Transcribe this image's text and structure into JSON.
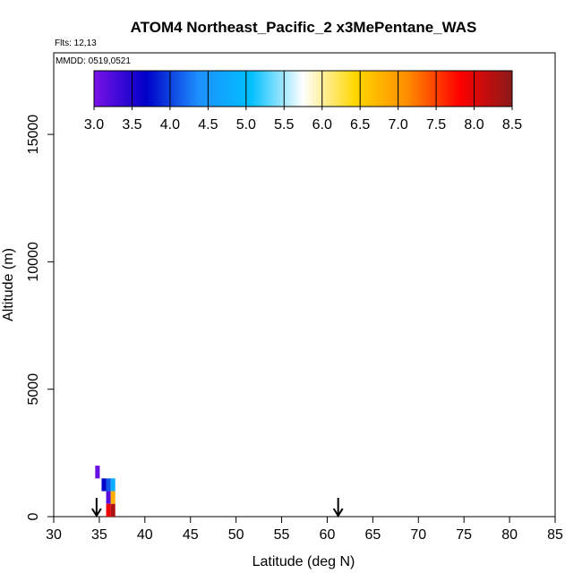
{
  "chart_data": {
    "type": "heatmap",
    "title": "ATOM4 Northeast_Pacific_2 x3MePentane_WAS",
    "flights_label": "Flts: 12,13",
    "date_label": "MMDD: 0519,0521",
    "xlabel": "Latitude (deg N)",
    "ylabel": "Altitude (m)",
    "xlim": [
      30,
      85
    ],
    "ylim": [
      0,
      18200
    ],
    "x_ticks": [
      30,
      35,
      40,
      45,
      50,
      55,
      60,
      65,
      70,
      75,
      80,
      85
    ],
    "y_ticks": [
      0,
      5000,
      10000,
      15000
    ],
    "grid": false,
    "colorbar": {
      "placement": "top",
      "min": 3.0,
      "max": 8.5,
      "tick_labels": [
        "3.0",
        "3.5",
        "4.0",
        "4.5",
        "5.0",
        "5.5",
        "6.0",
        "6.5",
        "7.0",
        "7.5",
        "8.0",
        "8.5"
      ],
      "colors": [
        "#7a12e6",
        "#0000c8",
        "#1e90ff",
        "#00bfff",
        "#ffffff",
        "#ffd700",
        "#ff8c00",
        "#ff0000",
        "#8b1a1a"
      ]
    },
    "cells": [
      {
        "lat": 34.8,
        "alt": 1750,
        "value": 3.1
      },
      {
        "lat": 35.5,
        "alt": 1250,
        "value": 3.7
      },
      {
        "lat": 36.0,
        "alt": 1250,
        "value": 4.1
      },
      {
        "lat": 36.5,
        "alt": 1250,
        "value": 4.8
      },
      {
        "lat": 36.0,
        "alt": 750,
        "value": 3.2
      },
      {
        "lat": 36.5,
        "alt": 750,
        "value": 6.8
      },
      {
        "lat": 36.0,
        "alt": 250,
        "value": 7.9
      },
      {
        "lat": 36.5,
        "alt": 250,
        "value": 8.3
      }
    ],
    "arrows": [
      34.7,
      61.2
    ]
  }
}
